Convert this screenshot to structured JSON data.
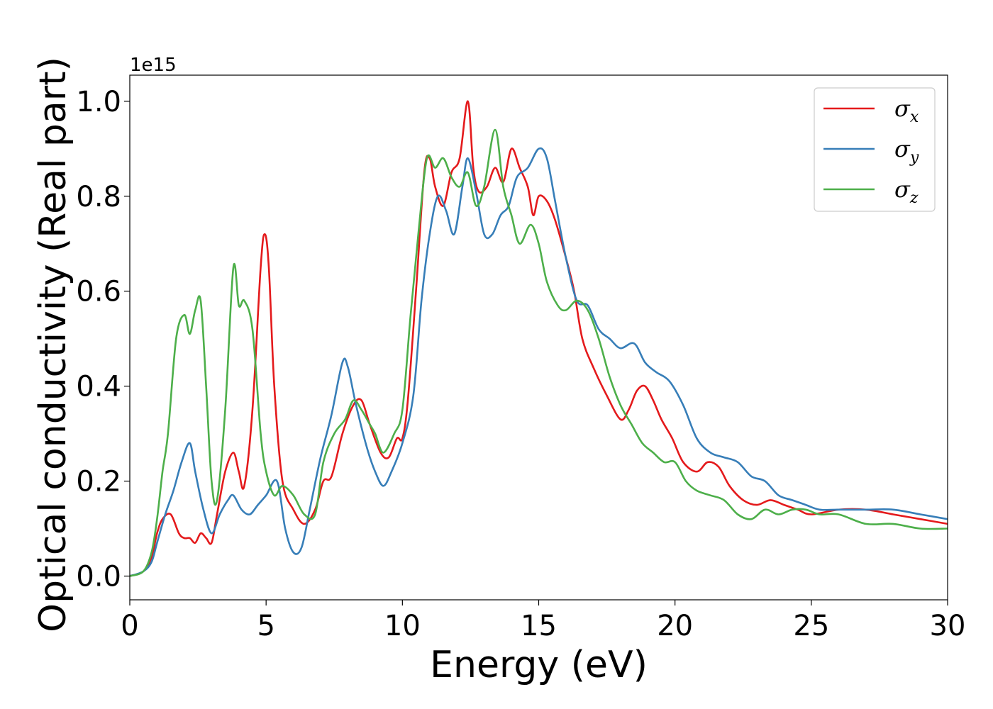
{
  "chart_data": {
    "type": "line",
    "xlabel": "Energy (eV)",
    "ylabel": "Optical conductivity (Real part)",
    "y_offset_label": "1e15",
    "xlim": [
      0,
      30
    ],
    "ylim": [
      -0.05,
      1.055
    ],
    "x_ticks": [
      0,
      5,
      10,
      15,
      20,
      25,
      30
    ],
    "x_tick_labels": [
      "0",
      "5",
      "10",
      "15",
      "20",
      "25",
      "30"
    ],
    "y_ticks": [
      0.0,
      0.2,
      0.4,
      0.6,
      0.8,
      1.0
    ],
    "y_tick_labels": [
      "0.0",
      "0.2",
      "0.4",
      "0.6",
      "0.8",
      "1.0"
    ],
    "legend_position": "top-right",
    "grid": false,
    "series": [
      {
        "name": "σx",
        "symbol": "σ",
        "subscript": "x",
        "color": "#e41a1c",
        "x": [
          0,
          0.5,
          0.8,
          1.0,
          1.2,
          1.5,
          1.8,
          2.0,
          2.2,
          2.4,
          2.6,
          2.8,
          3.0,
          3.2,
          3.5,
          3.8,
          4.0,
          4.2,
          4.5,
          4.8,
          4.95,
          5.1,
          5.3,
          5.6,
          6.0,
          6.4,
          6.8,
          7.1,
          7.4,
          7.8,
          8.2,
          8.5,
          8.8,
          9.2,
          9.5,
          9.8,
          10.0,
          10.2,
          10.5,
          10.8,
          11.0,
          11.2,
          11.5,
          11.8,
          12.1,
          12.4,
          12.6,
          12.8,
          13.1,
          13.4,
          13.7,
          14.0,
          14.3,
          14.6,
          14.8,
          15.0,
          15.3,
          15.6,
          16.0,
          16.3,
          16.6,
          17.0,
          17.5,
          18.0,
          18.3,
          18.6,
          18.9,
          19.2,
          19.5,
          19.9,
          20.3,
          20.8,
          21.2,
          21.6,
          22.0,
          22.5,
          23.0,
          23.5,
          24.0,
          24.5,
          25.0,
          26.0,
          27.0,
          28.0,
          29.0,
          30.0
        ],
        "y": [
          0,
          0.01,
          0.04,
          0.09,
          0.12,
          0.13,
          0.09,
          0.08,
          0.08,
          0.07,
          0.09,
          0.08,
          0.07,
          0.13,
          0.22,
          0.26,
          0.22,
          0.19,
          0.35,
          0.65,
          0.72,
          0.65,
          0.4,
          0.2,
          0.14,
          0.11,
          0.14,
          0.2,
          0.21,
          0.3,
          0.36,
          0.37,
          0.32,
          0.26,
          0.25,
          0.29,
          0.29,
          0.37,
          0.6,
          0.85,
          0.88,
          0.82,
          0.78,
          0.85,
          0.88,
          1.0,
          0.86,
          0.81,
          0.82,
          0.86,
          0.83,
          0.9,
          0.86,
          0.82,
          0.76,
          0.8,
          0.79,
          0.75,
          0.67,
          0.6,
          0.5,
          0.44,
          0.38,
          0.33,
          0.35,
          0.39,
          0.4,
          0.37,
          0.33,
          0.29,
          0.24,
          0.22,
          0.24,
          0.23,
          0.19,
          0.16,
          0.15,
          0.16,
          0.15,
          0.14,
          0.13,
          0.14,
          0.14,
          0.13,
          0.12,
          0.11
        ]
      },
      {
        "name": "σy",
        "symbol": "σ",
        "subscript": "y",
        "color": "#377eb8",
        "x": [
          0,
          0.5,
          0.8,
          1.0,
          1.3,
          1.6,
          1.9,
          2.2,
          2.4,
          2.7,
          3.0,
          3.3,
          3.6,
          3.8,
          4.1,
          4.4,
          4.7,
          5.0,
          5.4,
          5.7,
          6.0,
          6.3,
          6.6,
          7.0,
          7.4,
          7.8,
          8.0,
          8.3,
          8.7,
          9.0,
          9.3,
          9.6,
          10.0,
          10.4,
          10.7,
          11.0,
          11.3,
          11.6,
          11.9,
          12.2,
          12.4,
          12.7,
          13.0,
          13.3,
          13.6,
          13.9,
          14.2,
          14.6,
          15.0,
          15.3,
          15.6,
          16.0,
          16.4,
          16.8,
          17.2,
          17.6,
          18.0,
          18.5,
          18.9,
          19.3,
          19.8,
          20.3,
          20.8,
          21.3,
          21.8,
          22.3,
          22.8,
          23.3,
          23.8,
          24.3,
          24.8,
          25.3,
          26.0,
          27.0,
          28.0,
          29.0,
          30.0
        ],
        "y": [
          0,
          0.01,
          0.03,
          0.07,
          0.13,
          0.18,
          0.24,
          0.28,
          0.22,
          0.14,
          0.09,
          0.13,
          0.16,
          0.17,
          0.14,
          0.13,
          0.15,
          0.17,
          0.2,
          0.1,
          0.05,
          0.06,
          0.14,
          0.25,
          0.34,
          0.45,
          0.44,
          0.36,
          0.27,
          0.22,
          0.19,
          0.22,
          0.28,
          0.38,
          0.58,
          0.72,
          0.8,
          0.77,
          0.72,
          0.82,
          0.88,
          0.81,
          0.72,
          0.72,
          0.76,
          0.78,
          0.84,
          0.86,
          0.9,
          0.88,
          0.79,
          0.67,
          0.58,
          0.57,
          0.52,
          0.5,
          0.48,
          0.49,
          0.45,
          0.43,
          0.41,
          0.36,
          0.29,
          0.26,
          0.25,
          0.24,
          0.21,
          0.2,
          0.17,
          0.16,
          0.15,
          0.14,
          0.14,
          0.14,
          0.14,
          0.13,
          0.12
        ]
      },
      {
        "name": "σz",
        "symbol": "σ",
        "subscript": "z",
        "color": "#4daf4a",
        "x": [
          0,
          0.5,
          0.8,
          1.0,
          1.2,
          1.4,
          1.7,
          2.0,
          2.2,
          2.4,
          2.6,
          2.8,
          3.0,
          3.2,
          3.5,
          3.8,
          4.0,
          4.2,
          4.5,
          4.8,
          5.0,
          5.3,
          5.6,
          6.0,
          6.4,
          6.8,
          7.1,
          7.5,
          7.9,
          8.2,
          8.5,
          8.8,
          9.0,
          9.3,
          9.7,
          10.0,
          10.3,
          10.6,
          10.9,
          11.2,
          11.5,
          11.8,
          12.1,
          12.4,
          12.7,
          13.0,
          13.4,
          13.7,
          14.0,
          14.3,
          14.7,
          15.0,
          15.3,
          15.7,
          16.0,
          16.4,
          16.8,
          17.2,
          17.6,
          18.0,
          18.4,
          18.8,
          19.2,
          19.6,
          20.0,
          20.4,
          20.8,
          21.3,
          21.8,
          22.3,
          22.8,
          23.3,
          23.8,
          24.3,
          24.8,
          25.3,
          26.0,
          27.0,
          28.0,
          29.0,
          30.0
        ],
        "y": [
          0,
          0.01,
          0.05,
          0.12,
          0.22,
          0.3,
          0.5,
          0.55,
          0.51,
          0.56,
          0.58,
          0.4,
          0.2,
          0.16,
          0.35,
          0.65,
          0.57,
          0.58,
          0.52,
          0.3,
          0.22,
          0.17,
          0.19,
          0.17,
          0.13,
          0.13,
          0.24,
          0.3,
          0.33,
          0.37,
          0.35,
          0.32,
          0.3,
          0.26,
          0.3,
          0.35,
          0.55,
          0.73,
          0.88,
          0.86,
          0.88,
          0.84,
          0.82,
          0.85,
          0.78,
          0.82,
          0.94,
          0.82,
          0.76,
          0.7,
          0.74,
          0.7,
          0.62,
          0.57,
          0.56,
          0.58,
          0.56,
          0.5,
          0.42,
          0.36,
          0.32,
          0.28,
          0.26,
          0.24,
          0.24,
          0.2,
          0.18,
          0.17,
          0.16,
          0.13,
          0.12,
          0.14,
          0.13,
          0.14,
          0.14,
          0.13,
          0.13,
          0.11,
          0.11,
          0.1,
          0.1
        ]
      }
    ]
  }
}
